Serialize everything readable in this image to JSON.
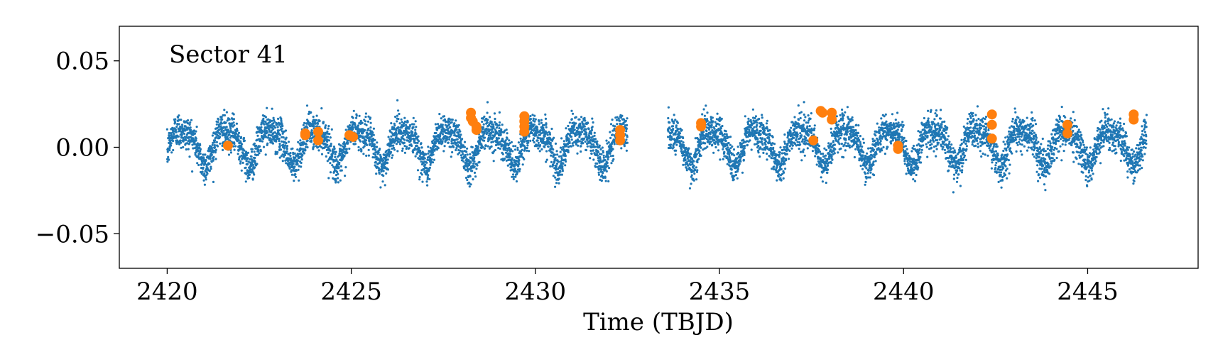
{
  "chart_data": {
    "type": "scatter",
    "annotation": "Sector 41",
    "xlabel": "Time (TBJD)",
    "ylabel": "",
    "xlim": [
      2418.7,
      2448.0
    ],
    "ylim": [
      -0.07,
      0.07
    ],
    "xticks": [
      2420,
      2425,
      2430,
      2435,
      2440,
      2445
    ],
    "yticks": [
      0.05,
      0.0,
      -0.05
    ],
    "xtick_labels": [
      "2420",
      "2425",
      "2430",
      "2435",
      "2440",
      "2445"
    ],
    "ytick_labels": [
      "0.05",
      "0.00",
      "−0.05"
    ],
    "grid": false,
    "colors": {
      "light_curve": "#1f77b4",
      "highlight": "#ff7f0e"
    },
    "series": [
      {
        "segments": [
          [
            2420.0,
            2432.5
          ],
          [
            2433.6,
            2446.6
          ]
        ],
        "period_days": 1.2,
        "amplitude": 0.013,
        "offset": 0.002,
        "scatter": 0.005
      },
      {
        "points": [
          {
            "x": 2421.65,
            "y": 0.001
          },
          {
            "x": 2423.75,
            "y": 0.008
          },
          {
            "x": 2423.75,
            "y": 0.007
          },
          {
            "x": 2424.1,
            "y": 0.009
          },
          {
            "x": 2424.1,
            "y": 0.004
          },
          {
            "x": 2424.95,
            "y": 0.007
          },
          {
            "x": 2425.05,
            "y": 0.006
          },
          {
            "x": 2428.25,
            "y": 0.02
          },
          {
            "x": 2428.25,
            "y": 0.017
          },
          {
            "x": 2428.3,
            "y": 0.015
          },
          {
            "x": 2428.4,
            "y": 0.012
          },
          {
            "x": 2428.4,
            "y": 0.01
          },
          {
            "x": 2429.7,
            "y": 0.018
          },
          {
            "x": 2429.7,
            "y": 0.015
          },
          {
            "x": 2429.7,
            "y": 0.012
          },
          {
            "x": 2429.7,
            "y": 0.009
          },
          {
            "x": 2432.3,
            "y": 0.01
          },
          {
            "x": 2432.3,
            "y": 0.007
          },
          {
            "x": 2432.3,
            "y": 0.004
          },
          {
            "x": 2434.5,
            "y": 0.014
          },
          {
            "x": 2434.5,
            "y": 0.012
          },
          {
            "x": 2437.55,
            "y": 0.004
          },
          {
            "x": 2437.75,
            "y": 0.021
          },
          {
            "x": 2437.8,
            "y": 0.02
          },
          {
            "x": 2438.05,
            "y": 0.02
          },
          {
            "x": 2438.05,
            "y": 0.016
          },
          {
            "x": 2439.85,
            "y": 0.001
          },
          {
            "x": 2439.85,
            "y": -0.001
          },
          {
            "x": 2442.4,
            "y": 0.019
          },
          {
            "x": 2442.4,
            "y": 0.013
          },
          {
            "x": 2442.4,
            "y": 0.005
          },
          {
            "x": 2444.45,
            "y": 0.013
          },
          {
            "x": 2444.45,
            "y": 0.008
          },
          {
            "x": 2446.25,
            "y": 0.019
          },
          {
            "x": 2446.25,
            "y": 0.016
          }
        ]
      }
    ]
  }
}
